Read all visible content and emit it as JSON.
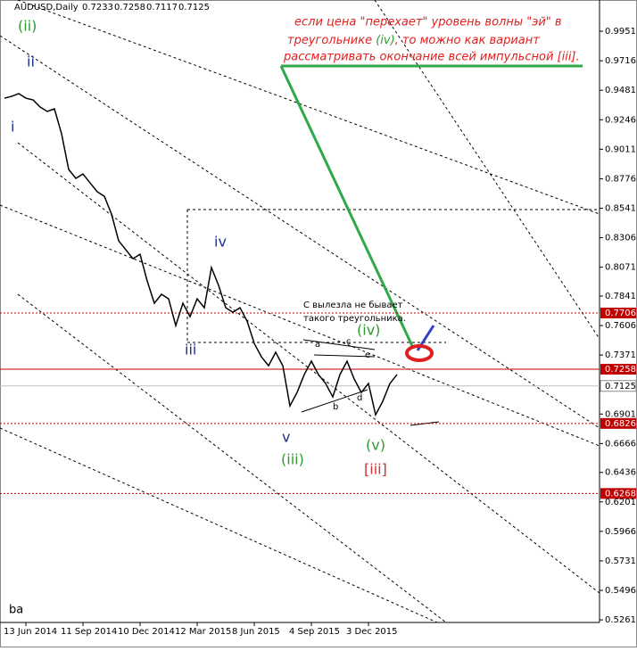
{
  "chart_data": {
    "type": "line",
    "header": {
      "symbol": "AUDUSD,Daily",
      "ohlc": [
        0.7233,
        0.7258,
        0.7117,
        0.7125
      ]
    },
    "annotation": {
      "line1": "если цена \"перехает\" уровень волны \"эй\" в",
      "line2a": "треугольнике ",
      "line2b": "(iv)",
      "line2c": ", то можно как вариант",
      "line3": "рассматривать окончание всей импульсной [iii]."
    },
    "note": [
      "С вылезла не бывает",
      "такого треугольника."
    ],
    "corner_text": "ba",
    "wave_labels": [
      {
        "text": "(ii)",
        "color": "#2e9a2e"
      },
      {
        "text": "ii",
        "color": "#1f2f8f"
      },
      {
        "text": "i",
        "color": "#1f2f8f"
      },
      {
        "text": "iv",
        "color": "#1f2f8f"
      },
      {
        "text": "iii",
        "color": "#1f2f8f"
      },
      {
        "text": "v",
        "color": "#1f2f8f"
      },
      {
        "text": "(iii)",
        "color": "#2e9a2e"
      },
      {
        "text": "(iv)",
        "color": "#2e9a2e"
      },
      {
        "text": "(v)",
        "color": "#2e9a2e"
      },
      {
        "text": "[iii]",
        "color": "#d03030"
      },
      {
        "text": "a",
        "color": "#000000"
      },
      {
        "text": "b",
        "color": "#000000"
      },
      {
        "text": "c",
        "color": "#000000"
      },
      {
        "text": "d",
        "color": "#000000"
      },
      {
        "text": "e",
        "color": "#000000"
      }
    ],
    "categories": [
      null,
      null,
      null,
      "13 Jun 2014",
      null,
      null,
      null,
      null,
      null,
      null,
      null,
      "11 Sep 2014",
      null,
      null,
      null,
      null,
      null,
      null,
      null,
      "10 Dec 2014",
      null,
      null,
      null,
      null,
      null,
      null,
      null,
      "12 Mar 2015",
      null,
      null,
      null,
      null,
      null,
      null,
      null,
      "8 Jun 2015",
      null,
      null,
      null,
      null,
      null,
      null,
      null,
      "4 Sep 2015",
      null,
      null,
      null,
      null,
      null,
      null,
      null,
      "3 Dec 2015",
      null,
      null,
      null,
      null
    ],
    "series": [
      {
        "name": "AUDUSD",
        "color": "#000000",
        "values": [
          0.9418,
          0.9432,
          0.9454,
          0.9418,
          0.9404,
          0.9347,
          0.9312,
          0.9333,
          0.9134,
          0.885,
          0.8779,
          0.8814,
          0.8743,
          0.8672,
          0.8636,
          0.8494,
          0.8281,
          0.821,
          0.8139,
          0.8174,
          0.7961,
          0.7784,
          0.7855,
          0.7819,
          0.7606,
          0.7784,
          0.7677,
          0.7819,
          0.7748,
          0.8068,
          0.7926,
          0.7748,
          0.7712,
          0.7748,
          0.7641,
          0.7464,
          0.7357,
          0.7286,
          0.7393,
          0.7286,
          0.6966,
          0.7073,
          0.7215,
          0.7322,
          0.7215,
          0.7144,
          0.7037,
          0.7215,
          0.7322,
          0.718,
          0.7073,
          0.7144,
          0.6895,
          0.7002,
          0.7144,
          0.7215
        ]
      }
    ],
    "ylim": [
      0.5226,
      1.02
    ],
    "yticks": [
      0.9951,
      0.9716,
      0.9481,
      0.9246,
      0.9011,
      0.8776,
      0.8541,
      0.8306,
      0.8071,
      0.7841,
      0.7606,
      0.7371,
      0.6901,
      0.6666,
      0.6436,
      0.6201,
      0.5966,
      0.5731,
      0.5496,
      0.5261
    ],
    "price_levels": [
      {
        "value": 0.7706,
        "color": "#c00000",
        "dash": true
      },
      {
        "value": 0.7258,
        "color": "#c00000",
        "dash": false
      },
      {
        "value": 0.7125,
        "color": "#c0c0c0",
        "dash": false
      },
      {
        "value": 0.6826,
        "color": "#c00000",
        "dash": true
      },
      {
        "value": 0.6268,
        "color": "#c00000",
        "dash": true
      }
    ]
  }
}
